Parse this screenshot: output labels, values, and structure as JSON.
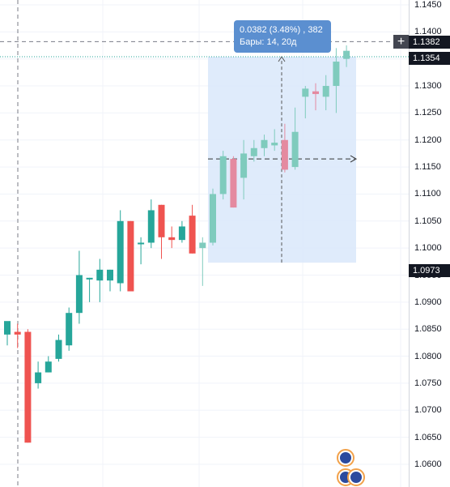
{
  "price_axis": {
    "ticks": [
      "1.1450",
      "1.1400",
      "1.1350",
      "1.1300",
      "1.1250",
      "1.1200",
      "1.1150",
      "1.1100",
      "1.1050",
      "1.1000",
      "1.0950",
      "1.0900",
      "1.0850",
      "1.0800",
      "1.0750",
      "1.0700",
      "1.0650",
      "1.0600"
    ],
    "crosshair_price": "1.1382",
    "last_price": "1.1354",
    "range_start_price": "1.0973"
  },
  "measure_tooltip": {
    "line1": "0.0382 (3.48%) , 382",
    "line2": "Бары: 14, 20д"
  },
  "colors": {
    "up": "#26a69a",
    "down": "#ef5350",
    "range_fill": "#dbe9fb",
    "tooltip_bg": "#5b8fd0",
    "axis_tag_bg": "#131722"
  },
  "event_icons": [
    "gb-flag-icon",
    "eu-flag-icon"
  ],
  "chart_data": {
    "type": "candlestick",
    "y_range": [
      1.059,
      1.146
    ],
    "candles": [
      {
        "o": 1.084,
        "h": 1.086,
        "l": 1.082,
        "c": 1.0865
      },
      {
        "o": 1.0845,
        "h": 1.086,
        "l": 1.0815,
        "c": 1.084
      },
      {
        "o": 1.0845,
        "h": 1.085,
        "l": 1.064,
        "c": 1.064
      },
      {
        "o": 1.075,
        "h": 1.079,
        "l": 1.074,
        "c": 1.077
      },
      {
        "o": 1.077,
        "h": 1.08,
        "l": 1.077,
        "c": 1.079
      },
      {
        "o": 1.0795,
        "h": 1.084,
        "l": 1.079,
        "c": 1.083
      },
      {
        "o": 1.082,
        "h": 1.089,
        "l": 1.081,
        "c": 1.088
      },
      {
        "o": 1.088,
        "h": 1.0995,
        "l": 1.086,
        "c": 1.095
      },
      {
        "o": 1.0945,
        "h": 1.0945,
        "l": 1.09,
        "c": 1.0945
      },
      {
        "o": 1.094,
        "h": 1.098,
        "l": 1.09,
        "c": 1.096
      },
      {
        "o": 1.094,
        "h": 1.096,
        "l": 1.092,
        "c": 1.096
      },
      {
        "o": 1.0935,
        "h": 1.107,
        "l": 1.092,
        "c": 1.105
      },
      {
        "o": 1.105,
        "h": 1.105,
        "l": 1.092,
        "c": 1.092
      },
      {
        "o": 1.101,
        "h": 1.102,
        "l": 1.097,
        "c": 1.101
      },
      {
        "o": 1.101,
        "h": 1.109,
        "l": 1.1,
        "c": 1.107
      },
      {
        "o": 1.108,
        "h": 1.108,
        "l": 1.098,
        "c": 1.102
      },
      {
        "o": 1.102,
        "h": 1.104,
        "l": 1.1,
        "c": 1.1015
      },
      {
        "o": 1.1015,
        "h": 1.105,
        "l": 1.101,
        "c": 1.104
      },
      {
        "o": 1.106,
        "h": 1.108,
        "l": 1.099,
        "c": 1.099
      },
      {
        "o": 1.1,
        "h": 1.102,
        "l": 1.093,
        "c": 1.101
      },
      {
        "o": 1.101,
        "h": 1.111,
        "l": 1.1005,
        "c": 1.11
      },
      {
        "o": 1.11,
        "h": 1.118,
        "l": 1.109,
        "c": 1.117
      },
      {
        "o": 1.1165,
        "h": 1.117,
        "l": 1.1075,
        "c": 1.1075
      },
      {
        "o": 1.113,
        "h": 1.12,
        "l": 1.109,
        "c": 1.1175
      },
      {
        "o": 1.117,
        "h": 1.12,
        "l": 1.116,
        "c": 1.1185
      },
      {
        "o": 1.1185,
        "h": 1.121,
        "l": 1.117,
        "c": 1.12
      },
      {
        "o": 1.119,
        "h": 1.122,
        "l": 1.118,
        "c": 1.1195
      },
      {
        "o": 1.12,
        "h": 1.123,
        "l": 1.114,
        "c": 1.1145
      },
      {
        "o": 1.115,
        "h": 1.126,
        "l": 1.1145,
        "c": 1.1215
      },
      {
        "o": 1.128,
        "h": 1.13,
        "l": 1.124,
        "c": 1.1295
      },
      {
        "o": 1.129,
        "h": 1.1305,
        "l": 1.1255,
        "c": 1.1285
      },
      {
        "o": 1.128,
        "h": 1.132,
        "l": 1.1255,
        "c": 1.13
      },
      {
        "o": 1.13,
        "h": 1.137,
        "l": 1.125,
        "c": 1.1345
      },
      {
        "o": 1.135,
        "h": 1.1375,
        "l": 1.1335,
        "c": 1.1365
      }
    ]
  }
}
